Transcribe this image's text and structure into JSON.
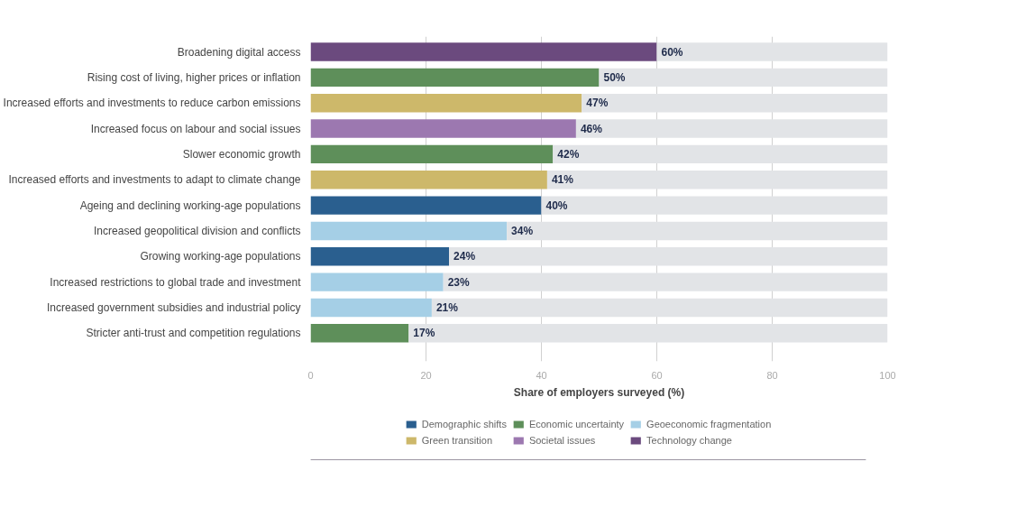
{
  "chart_data": {
    "type": "bar",
    "orientation": "horizontal",
    "stacked": true,
    "xlabel": "Share of employers surveyed (%)",
    "categories": [
      "Broadening digital access",
      "Rising cost of living, higher prices or inflation",
      "Increased efforts and investments to reduce carbon emissions",
      "Increased focus on labour and social issues",
      "Slower economic growth",
      "Increased efforts and investments to adapt to climate change",
      "Ageing and declining working-age populations",
      "Increased geopolitical division and conflicts",
      "Growing working-age populations",
      "Increased restrictions to global trade and investment",
      "Increased government subsidies and industrial policy",
      "Stricter anti-trust and competition regulations"
    ],
    "series": [
      {
        "name": "Demographic shifts",
        "color": "#2a5f8f",
        "values": [
          null,
          null,
          null,
          null,
          null,
          null,
          40,
          null,
          24,
          null,
          null,
          null
        ],
        "value_labels": [
          null,
          null,
          null,
          null,
          null,
          null,
          "40%",
          null,
          "24%",
          null,
          null,
          null
        ]
      },
      {
        "name": "Economic uncertainty",
        "color": "#5e8f5a",
        "values": [
          null,
          50,
          null,
          null,
          42,
          null,
          null,
          null,
          null,
          null,
          null,
          17
        ],
        "value_labels": [
          null,
          "50%",
          null,
          null,
          "42%",
          null,
          null,
          null,
          null,
          null,
          null,
          "17%"
        ]
      },
      {
        "name": "Geoeconomic fragmentation",
        "color": "#a5cfe6",
        "values": [
          null,
          null,
          null,
          null,
          null,
          null,
          null,
          34,
          null,
          23,
          21,
          null
        ],
        "value_labels": [
          null,
          null,
          null,
          null,
          null,
          null,
          null,
          "34%",
          null,
          "23%",
          "21%",
          null
        ]
      },
      {
        "name": "Green transition",
        "color": "#cdb86a",
        "values": [
          null,
          null,
          47,
          null,
          null,
          41,
          null,
          null,
          null,
          null,
          null,
          null
        ],
        "value_labels": [
          null,
          null,
          "47%",
          null,
          null,
          "41%",
          null,
          null,
          null,
          null,
          null,
          null
        ]
      },
      {
        "name": "Societal issues",
        "color": "#9c78b0",
        "values": [
          null,
          null,
          null,
          46,
          null,
          null,
          null,
          null,
          null,
          null,
          null,
          null
        ],
        "value_labels": [
          null,
          null,
          null,
          "46%",
          null,
          null,
          null,
          null,
          null,
          null,
          null,
          null
        ]
      },
      {
        "name": "Technology change",
        "color": "#6b4a7e",
        "values": [
          60,
          null,
          null,
          null,
          null,
          null,
          null,
          null,
          null,
          null,
          null,
          null
        ],
        "value_labels": [
          "60%",
          null,
          null,
          null,
          null,
          null,
          null,
          null,
          null,
          null,
          null,
          null
        ]
      },
      {
        "color": "#e2e4e7",
        "values": [
          40,
          50,
          53,
          54,
          58,
          59,
          60,
          66,
          76,
          77,
          79,
          83
        ]
      }
    ],
    "xlim": [
      0,
      100
    ],
    "xticks": [
      0,
      20,
      40,
      60,
      80,
      100
    ],
    "grid": "x",
    "legend": "bottom"
  }
}
